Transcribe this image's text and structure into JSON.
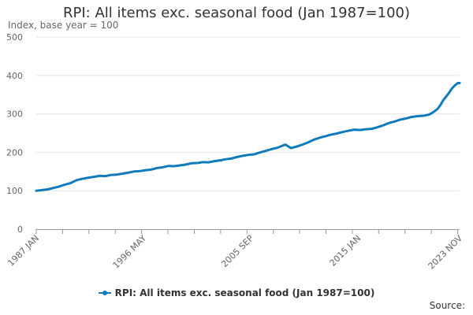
{
  "chart_data": {
    "type": "line",
    "title": "RPI: All items exc. seasonal food (Jan 1987=100)",
    "ylabel": "Index, base year = 100",
    "xlabel": "",
    "ylim": [
      0,
      500
    ],
    "yticks": [
      "0",
      "100",
      "200",
      "300",
      "400",
      "500"
    ],
    "xticks": [
      {
        "label": "1987 JAN",
        "date": "1987-01"
      },
      {
        "label": "1996 MAY",
        "date": "1996-05"
      },
      {
        "label": "2005 SEP",
        "date": "2005-09"
      },
      {
        "label": "2015 JAN",
        "date": "2015-01"
      },
      {
        "label": "2023 NOV",
        "date": "2023-11"
      }
    ],
    "xlim": [
      "1987-01",
      "2023-11"
    ],
    "grid": "horizontal",
    "legend_position": "bottom",
    "series": [
      {
        "name": "RPI: All items exc. seasonal food (Jan 1987=100)",
        "color": "#0f7bbd",
        "points": [
          [
            "1987-01",
            100
          ],
          [
            "1987-07",
            101.6
          ],
          [
            "1988-01",
            103.5
          ],
          [
            "1988-07",
            107.2
          ],
          [
            "1989-01",
            111
          ],
          [
            "1989-07",
            116
          ],
          [
            "1990-01",
            120
          ],
          [
            "1990-07",
            127.5
          ],
          [
            "1991-01",
            131
          ],
          [
            "1991-07",
            133.8
          ],
          [
            "1992-01",
            136
          ],
          [
            "1992-07",
            138.8
          ],
          [
            "1993-01",
            138
          ],
          [
            "1993-07",
            141
          ],
          [
            "1994-01",
            142
          ],
          [
            "1994-07",
            144.5
          ],
          [
            "1995-01",
            147
          ],
          [
            "1995-07",
            150
          ],
          [
            "1996-01",
            151
          ],
          [
            "1996-07",
            153.5
          ],
          [
            "1997-01",
            155
          ],
          [
            "1997-07",
            159
          ],
          [
            "1998-01",
            161
          ],
          [
            "1998-07",
            164.5
          ],
          [
            "1999-01",
            164
          ],
          [
            "1999-07",
            166
          ],
          [
            "2000-01",
            168
          ],
          [
            "2000-07",
            171.5
          ],
          [
            "2001-01",
            172
          ],
          [
            "2001-07",
            174.5
          ],
          [
            "2002-01",
            174
          ],
          [
            "2002-07",
            177
          ],
          [
            "2003-01",
            179
          ],
          [
            "2003-07",
            182
          ],
          [
            "2004-01",
            184
          ],
          [
            "2004-07",
            188
          ],
          [
            "2005-01",
            191
          ],
          [
            "2005-07",
            193.5
          ],
          [
            "2006-01",
            195
          ],
          [
            "2006-07",
            200
          ],
          [
            "2007-01",
            204
          ],
          [
            "2007-07",
            208.5
          ],
          [
            "2008-01",
            212
          ],
          [
            "2008-09",
            220
          ],
          [
            "2009-03",
            211
          ],
          [
            "2009-09",
            215
          ],
          [
            "2010-03",
            220
          ],
          [
            "2010-09",
            226
          ],
          [
            "2011-03",
            233
          ],
          [
            "2011-09",
            238
          ],
          [
            "2012-03",
            242
          ],
          [
            "2012-09",
            246
          ],
          [
            "2013-03",
            249
          ],
          [
            "2013-09",
            253
          ],
          [
            "2014-03",
            256
          ],
          [
            "2014-09",
            259
          ],
          [
            "2015-03",
            258
          ],
          [
            "2015-09",
            260
          ],
          [
            "2016-03",
            261
          ],
          [
            "2016-09",
            265
          ],
          [
            "2017-03",
            270
          ],
          [
            "2017-09",
            276
          ],
          [
            "2018-03",
            280
          ],
          [
            "2018-09",
            285
          ],
          [
            "2019-03",
            288
          ],
          [
            "2019-09",
            292
          ],
          [
            "2020-03",
            294
          ],
          [
            "2020-09",
            295
          ],
          [
            "2021-03",
            298
          ],
          [
            "2021-06",
            302
          ],
          [
            "2021-09",
            307
          ],
          [
            "2021-12",
            313
          ],
          [
            "2022-03",
            323
          ],
          [
            "2022-06",
            336
          ],
          [
            "2022-09",
            345
          ],
          [
            "2022-12",
            355
          ],
          [
            "2023-03",
            366
          ],
          [
            "2023-06",
            374
          ],
          [
            "2023-09",
            380
          ],
          [
            "2023-11",
            380
          ]
        ]
      }
    ]
  },
  "footer": {
    "source_label": "Source:"
  }
}
